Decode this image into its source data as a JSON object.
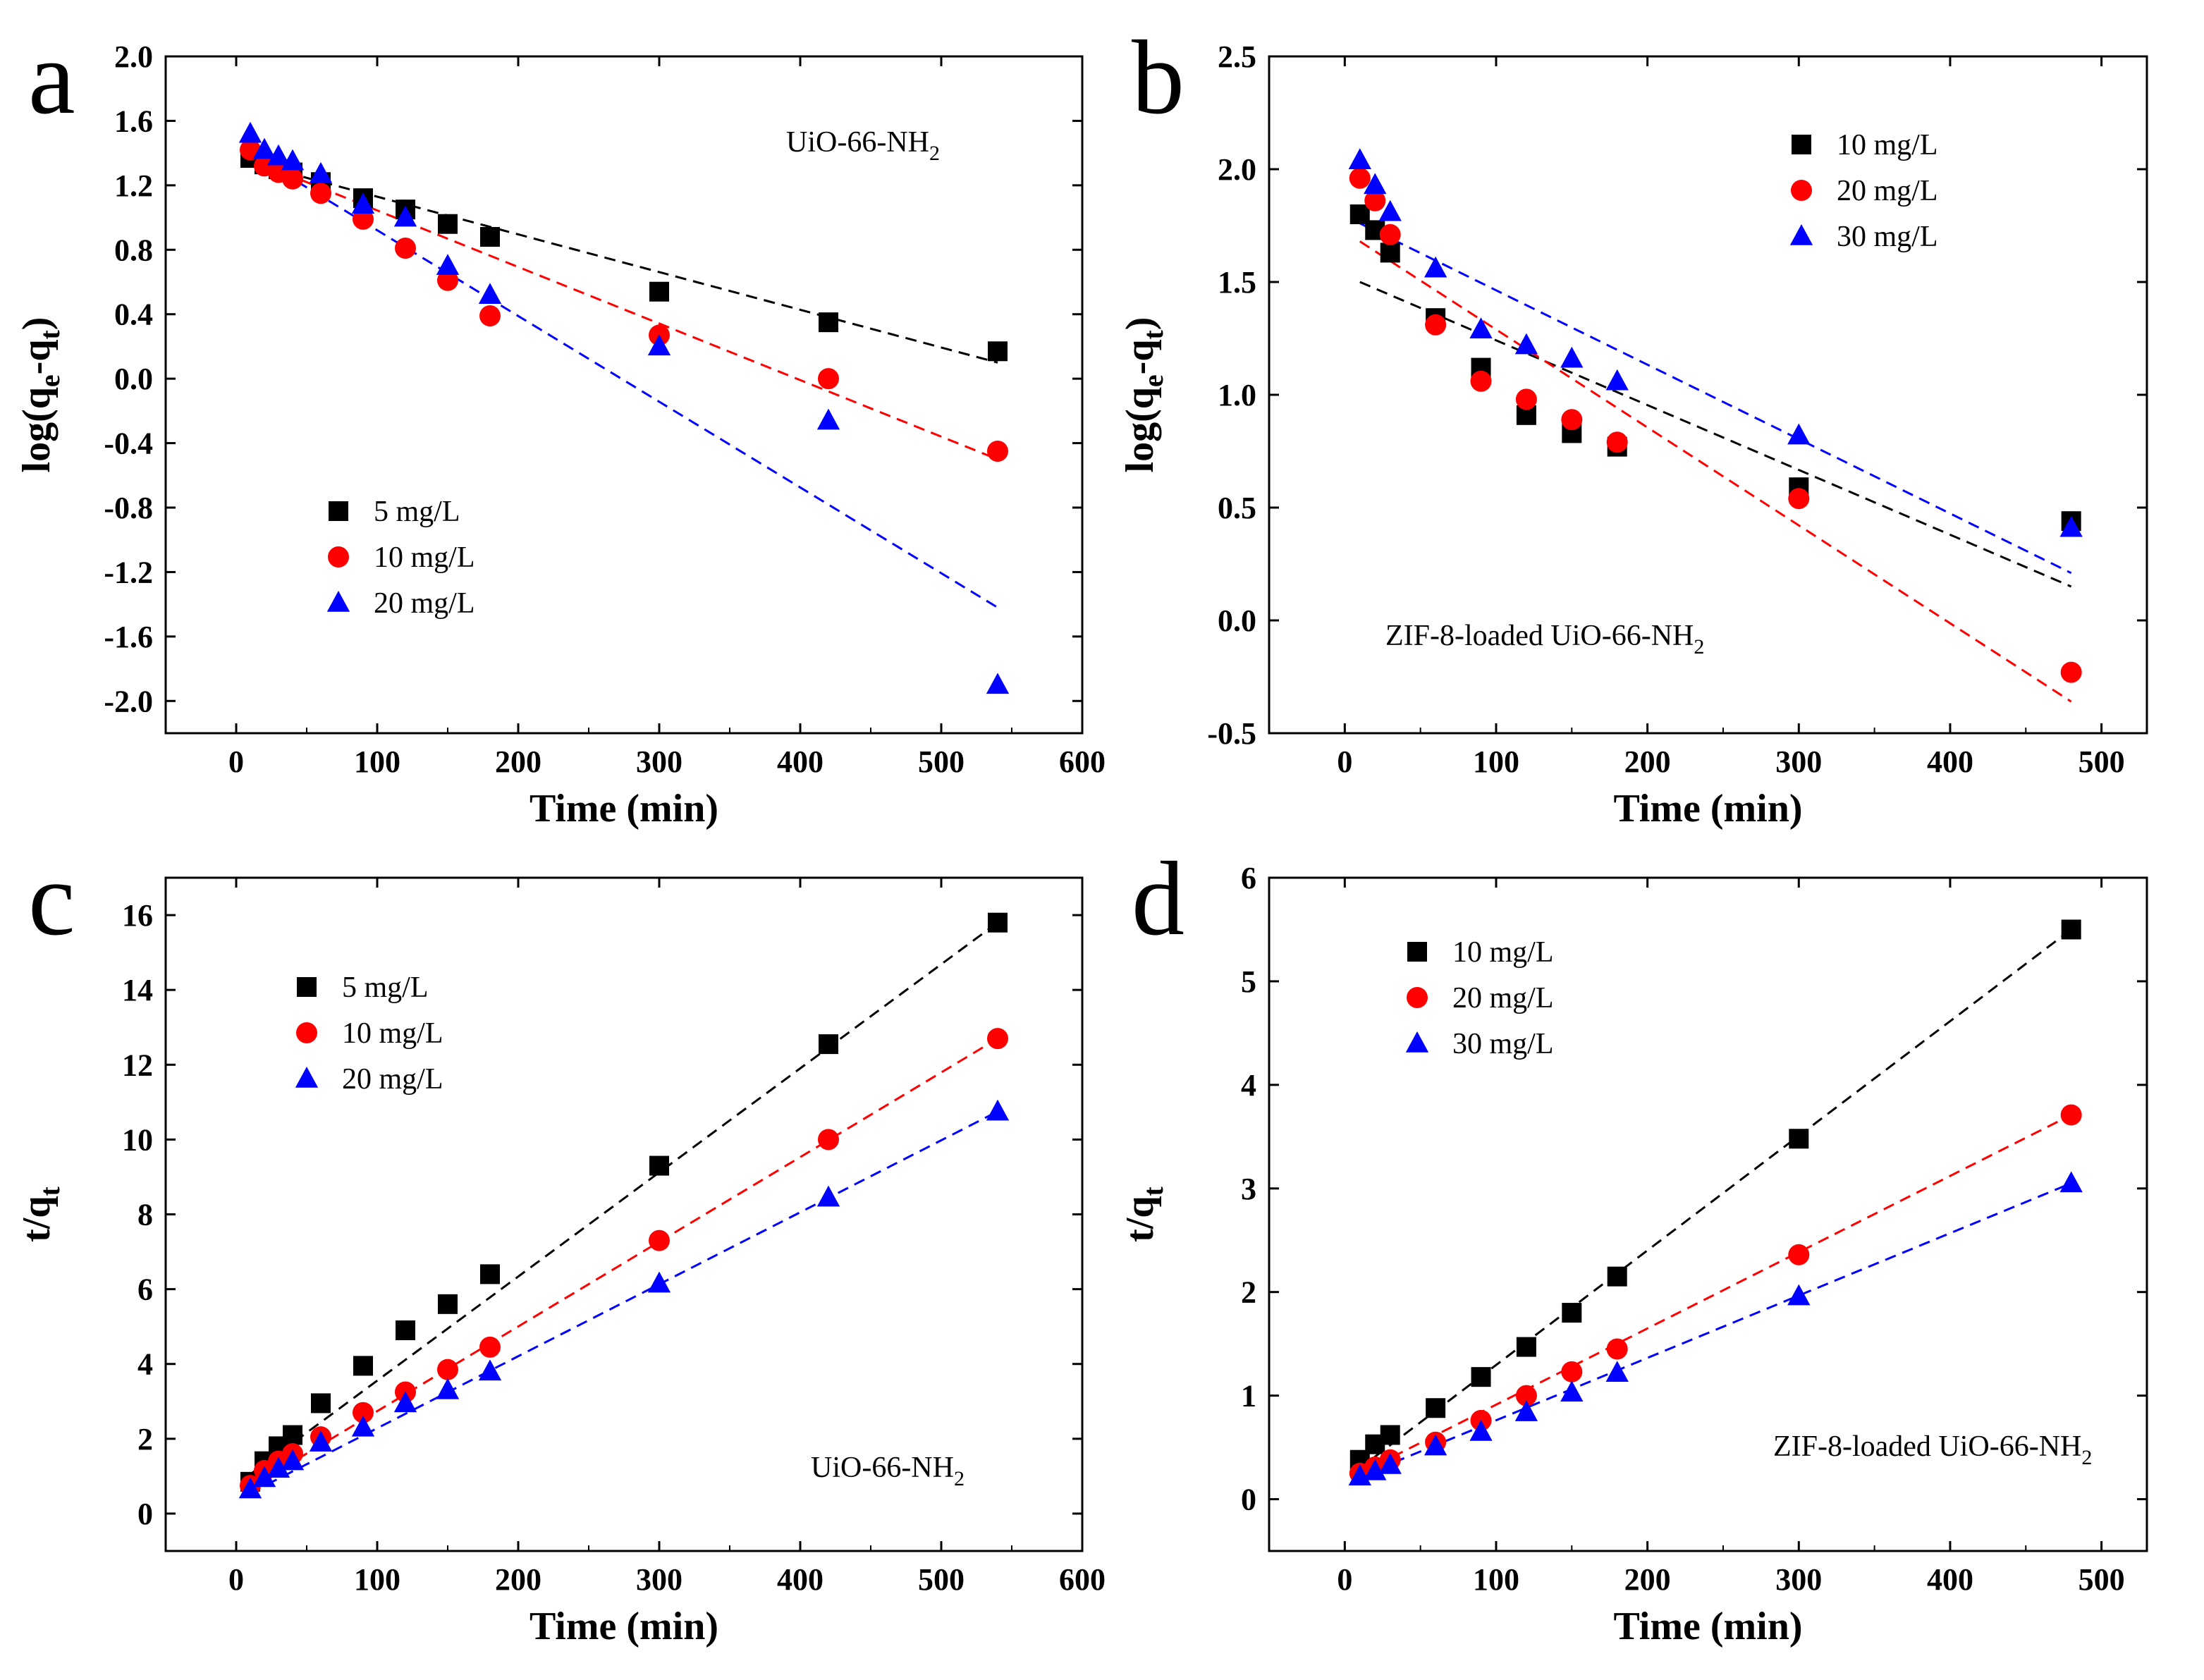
{
  "figure": {
    "description_panels": [
      "a",
      "b",
      "c",
      "d"
    ]
  },
  "chart_data": [
    {
      "panel": "a",
      "type": "scatter",
      "title": "",
      "annotation": "UiO-66-NH",
      "annotation_sub": "2",
      "xlabel": "Time (min)",
      "ylabel": "log(q",
      "ylabel_sub1": "e",
      "ylabel_mid": "-q",
      "ylabel_sub2": "t",
      "ylabel_end": ")",
      "xlim": [
        -50,
        600
      ],
      "ylim": [
        -2.2,
        2.0
      ],
      "xticks": [
        0,
        100,
        200,
        300,
        400,
        500,
        600
      ],
      "yticks": [
        -2.0,
        -1.6,
        -1.2,
        -0.8,
        -0.4,
        0.0,
        0.4,
        0.8,
        1.2,
        1.6,
        2.0
      ],
      "ytick_labels": [
        "-2.0",
        "-1.6",
        "-1.2",
        "-0.8",
        "-0.4",
        "0.0",
        "0.4",
        "0.8",
        "1.2",
        "1.6",
        "2.0"
      ],
      "legend_position": "bottom-left",
      "series": [
        {
          "name": "5 mg/L",
          "color": "#000000",
          "marker": "square",
          "x": [
            10,
            20,
            30,
            40,
            60,
            90,
            120,
            150,
            180,
            300,
            420,
            540
          ],
          "y": [
            1.37,
            1.33,
            1.3,
            1.28,
            1.22,
            1.12,
            1.05,
            0.96,
            0.88,
            0.54,
            0.35,
            0.17
          ],
          "fit": [
            [
              10,
              1.34
            ],
            [
              540,
              0.1
            ]
          ]
        },
        {
          "name": "10 mg/L",
          "color": "#ff0000",
          "marker": "circle",
          "x": [
            10,
            20,
            30,
            40,
            60,
            90,
            120,
            150,
            180,
            300,
            420,
            540
          ],
          "y": [
            1.42,
            1.32,
            1.28,
            1.24,
            1.15,
            0.99,
            0.81,
            0.61,
            0.39,
            0.27,
            0.0,
            -0.45
          ],
          "fit": [
            [
              10,
              1.36
            ],
            [
              540,
              -0.5
            ]
          ]
        },
        {
          "name": "20 mg/L",
          "color": "#0000ff",
          "marker": "triangle",
          "x": [
            10,
            20,
            30,
            40,
            60,
            90,
            120,
            150,
            180,
            300,
            420,
            540
          ],
          "y": [
            1.52,
            1.42,
            1.38,
            1.35,
            1.27,
            1.08,
            1.0,
            0.7,
            0.52,
            0.2,
            -0.26,
            -1.9
          ],
          "fit": [
            [
              10,
              1.4
            ],
            [
              540,
              -1.42
            ]
          ]
        }
      ]
    },
    {
      "panel": "b",
      "type": "scatter",
      "title": "",
      "annotation": "ZIF-8-loaded UiO-66-NH",
      "annotation_sub": "2",
      "xlabel": "Time (min)",
      "ylabel": "log(q",
      "ylabel_sub1": "e",
      "ylabel_mid": "-q",
      "ylabel_sub2": "t",
      "ylabel_end": ")",
      "xlim": [
        -50,
        530
      ],
      "ylim": [
        -0.5,
        2.5
      ],
      "xticks": [
        0,
        100,
        200,
        300,
        400,
        500
      ],
      "yticks": [
        -0.5,
        0.0,
        0.5,
        1.0,
        1.5,
        2.0,
        2.5
      ],
      "ytick_labels": [
        "-0.5",
        "0.0",
        "0.5",
        "1.0",
        "1.5",
        "2.0",
        "2.5"
      ],
      "legend_position": "top-right",
      "series": [
        {
          "name": "10 mg/L",
          "color": "#000000",
          "marker": "square",
          "x": [
            10,
            20,
            30,
            60,
            90,
            120,
            150,
            180,
            300,
            480
          ],
          "y": [
            1.8,
            1.73,
            1.63,
            1.34,
            1.12,
            0.91,
            0.83,
            0.77,
            0.59,
            0.44
          ],
          "fit": [
            [
              10,
              1.5
            ],
            [
              480,
              0.15
            ]
          ]
        },
        {
          "name": "20 mg/L",
          "color": "#ff0000",
          "marker": "circle",
          "x": [
            10,
            20,
            30,
            60,
            90,
            120,
            150,
            180,
            300,
            480
          ],
          "y": [
            1.96,
            1.86,
            1.71,
            1.31,
            1.06,
            0.98,
            0.89,
            0.79,
            0.54,
            -0.23
          ],
          "fit": [
            [
              10,
              1.68
            ],
            [
              480,
              -0.36
            ]
          ]
        },
        {
          "name": "30 mg/L",
          "color": "#0000ff",
          "marker": "triangle",
          "x": [
            10,
            20,
            30,
            60,
            90,
            120,
            150,
            180,
            300,
            480
          ],
          "y": [
            2.04,
            1.93,
            1.81,
            1.56,
            1.29,
            1.22,
            1.16,
            1.06,
            0.82,
            0.41
          ],
          "fit": [
            [
              10,
              1.76
            ],
            [
              480,
              0.21
            ]
          ]
        }
      ]
    },
    {
      "panel": "c",
      "type": "scatter",
      "title": "",
      "annotation": "UiO-66-NH",
      "annotation_sub": "2",
      "xlabel": "Time (min)",
      "ylabel": "t/q",
      "ylabel_sub1": "t",
      "ylabel_mid": "",
      "ylabel_sub2": "",
      "ylabel_end": "",
      "xlim": [
        -50,
        600
      ],
      "ylim": [
        -1,
        17
      ],
      "xticks": [
        0,
        100,
        200,
        300,
        400,
        500,
        600
      ],
      "yticks": [
        0,
        2,
        4,
        6,
        8,
        10,
        12,
        14,
        16
      ],
      "ytick_labels": [
        "0",
        "2",
        "4",
        "6",
        "8",
        "10",
        "12",
        "14",
        "16"
      ],
      "legend_position": "top-left",
      "series": [
        {
          "name": "5 mg/L",
          "color": "#000000",
          "marker": "square",
          "x": [
            10,
            20,
            30,
            40,
            60,
            90,
            120,
            150,
            180,
            300,
            420,
            540
          ],
          "y": [
            0.85,
            1.4,
            1.8,
            2.1,
            2.95,
            3.95,
            4.9,
            5.6,
            6.4,
            9.3,
            12.55,
            15.8
          ],
          "fit": [
            [
              10,
              1.05
            ],
            [
              540,
              15.8
            ]
          ]
        },
        {
          "name": "10 mg/L",
          "color": "#ff0000",
          "marker": "circle",
          "x": [
            10,
            20,
            30,
            40,
            60,
            90,
            120,
            150,
            180,
            300,
            420,
            540
          ],
          "y": [
            0.75,
            1.15,
            1.4,
            1.6,
            2.05,
            2.7,
            3.25,
            3.85,
            4.45,
            7.3,
            10.0,
            12.7
          ],
          "fit": [
            [
              10,
              0.7
            ],
            [
              540,
              12.7
            ]
          ]
        },
        {
          "name": "20 mg/L",
          "color": "#0000ff",
          "marker": "triangle",
          "x": [
            10,
            20,
            30,
            40,
            60,
            90,
            120,
            150,
            180,
            300,
            420,
            540
          ],
          "y": [
            0.65,
            0.95,
            1.2,
            1.4,
            1.9,
            2.3,
            2.95,
            3.3,
            3.8,
            6.15,
            8.45,
            10.75
          ],
          "fit": [
            [
              10,
              0.55
            ],
            [
              540,
              10.75
            ]
          ]
        }
      ]
    },
    {
      "panel": "d",
      "type": "scatter",
      "title": "",
      "annotation": "ZIF-8-loaded UiO-66-NH",
      "annotation_sub": "2",
      "xlabel": "Time (min)",
      "ylabel": "t/q",
      "ylabel_sub1": "t",
      "ylabel_mid": "",
      "ylabel_sub2": "",
      "ylabel_end": "",
      "xlim": [
        -50,
        530
      ],
      "ylim": [
        -0.5,
        6
      ],
      "xticks": [
        0,
        100,
        200,
        300,
        400,
        500
      ],
      "yticks": [
        0,
        1,
        2,
        3,
        4,
        5,
        6
      ],
      "ytick_labels": [
        "0",
        "1",
        "2",
        "3",
        "4",
        "5",
        "6"
      ],
      "legend_position": "top-left",
      "series": [
        {
          "name": "10 mg/L",
          "color": "#000000",
          "marker": "square",
          "x": [
            10,
            20,
            30,
            60,
            90,
            120,
            150,
            180,
            300,
            480
          ],
          "y": [
            0.38,
            0.53,
            0.62,
            0.88,
            1.18,
            1.47,
            1.8,
            2.15,
            3.48,
            5.5
          ],
          "fit": [
            [
              10,
              0.3
            ],
            [
              480,
              5.5
            ]
          ]
        },
        {
          "name": "20 mg/L",
          "color": "#ff0000",
          "marker": "circle",
          "x": [
            10,
            20,
            30,
            60,
            90,
            120,
            150,
            180,
            300,
            480
          ],
          "y": [
            0.25,
            0.31,
            0.38,
            0.55,
            0.76,
            1.0,
            1.23,
            1.45,
            2.36,
            3.71
          ],
          "fit": [
            [
              10,
              0.25
            ],
            [
              480,
              3.71
            ]
          ]
        },
        {
          "name": "30 mg/L",
          "color": "#0000ff",
          "marker": "triangle",
          "x": [
            10,
            20,
            30,
            60,
            90,
            120,
            150,
            180,
            300,
            480
          ],
          "y": [
            0.22,
            0.27,
            0.33,
            0.51,
            0.65,
            0.84,
            1.03,
            1.22,
            1.96,
            3.05
          ],
          "fit": [
            [
              10,
              0.22
            ],
            [
              480,
              3.05
            ]
          ]
        }
      ]
    }
  ]
}
